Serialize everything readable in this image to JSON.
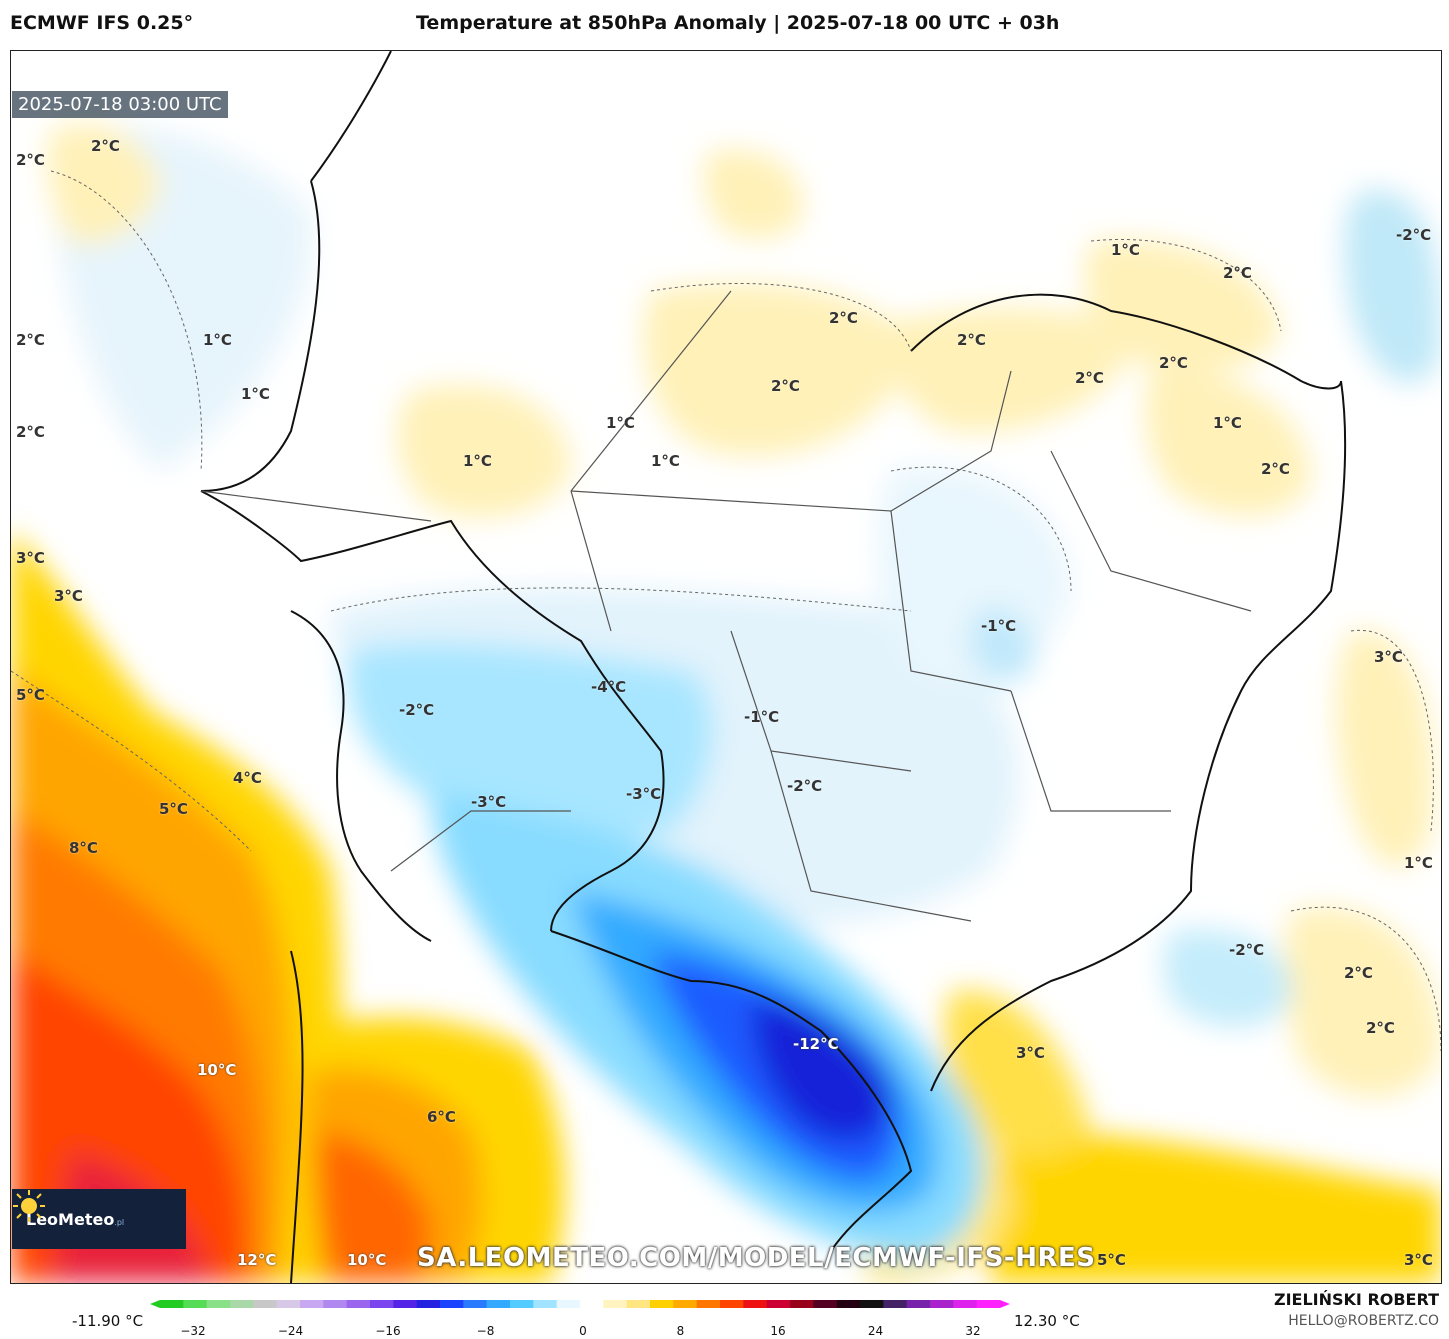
{
  "header": {
    "model": "ECMWF IFS 0.25°",
    "title": "Temperature at 850hPa Anomaly | 2025-07-18 00 UTC + 03h"
  },
  "map": {
    "timestamp": "2025-07-18 03:00 UTC",
    "watermark": "SA.LEOMETEO.COM/MODEL/ECMWF-IFS-HRES",
    "logo": {
      "name": "LeoMeteo",
      "suffix": ".pl"
    },
    "labels": [
      {
        "text": "2°C",
        "tone": "dark"
      },
      {
        "text": "2°C",
        "tone": "dark"
      },
      {
        "text": "2°C",
        "tone": "dark"
      },
      {
        "text": "2°C",
        "tone": "dark"
      },
      {
        "text": "1°C",
        "tone": "dark"
      },
      {
        "text": "1°C",
        "tone": "dark"
      },
      {
        "text": "1°C",
        "tone": "dark"
      },
      {
        "text": "1°C",
        "tone": "dark"
      },
      {
        "text": "1°C",
        "tone": "dark"
      },
      {
        "text": "2°C",
        "tone": "dark"
      },
      {
        "text": "2°C",
        "tone": "dark"
      },
      {
        "text": "2°C",
        "tone": "dark"
      },
      {
        "text": "2°C",
        "tone": "dark"
      },
      {
        "text": "2°C",
        "tone": "dark"
      },
      {
        "text": "1°C",
        "tone": "dark"
      },
      {
        "text": "2°C",
        "tone": "dark"
      },
      {
        "text": "1°C",
        "tone": "dark"
      },
      {
        "text": "2°C",
        "tone": "dark"
      },
      {
        "text": "-2°C",
        "tone": "dark"
      },
      {
        "text": "3°C",
        "tone": "dark"
      },
      {
        "text": "3°C",
        "tone": "dark"
      },
      {
        "text": "5°C",
        "tone": "dark"
      },
      {
        "text": "4°C",
        "tone": "dark"
      },
      {
        "text": "5°C",
        "tone": "dark"
      },
      {
        "text": "8°C",
        "tone": "dark"
      },
      {
        "text": "10°C",
        "tone": "light"
      },
      {
        "text": "6°C",
        "tone": "dark"
      },
      {
        "text": "12°C",
        "tone": "light"
      },
      {
        "text": "10°C",
        "tone": "light"
      },
      {
        "text": "-4°C",
        "tone": "dark"
      },
      {
        "text": "-1°C",
        "tone": "dark"
      },
      {
        "text": "-2°C",
        "tone": "dark"
      },
      {
        "text": "-3°C",
        "tone": "dark"
      },
      {
        "text": "-3°C",
        "tone": "dark"
      },
      {
        "text": "-2°C",
        "tone": "dark"
      },
      {
        "text": "-1°C",
        "tone": "dark"
      },
      {
        "text": "-12°C",
        "tone": "light"
      },
      {
        "text": "-2°C",
        "tone": "dark"
      },
      {
        "text": "2°C",
        "tone": "dark"
      },
      {
        "text": "2°C",
        "tone": "dark"
      },
      {
        "text": "3°C",
        "tone": "dark"
      },
      {
        "text": "3°C",
        "tone": "dark"
      },
      {
        "text": "1°C",
        "tone": "dark"
      },
      {
        "text": "5°C",
        "tone": "dark"
      },
      {
        "text": "3°C",
        "tone": "dark"
      }
    ]
  },
  "colorbar": {
    "min_label": "-11.90 °C",
    "max_label": "12.30 °C",
    "ticks": [
      "−32",
      "−24",
      "−16",
      "−8",
      "0",
      "8",
      "16",
      "24",
      "32"
    ],
    "colors": [
      "#22cc22",
      "#55dd55",
      "#88e088",
      "#a8d8a8",
      "#c8c8c8",
      "#d8c8e8",
      "#c8a8f0",
      "#b088f0",
      "#9a66ee",
      "#7a44ee",
      "#5522e8",
      "#2222e0",
      "#1a44ff",
      "#2a7aff",
      "#33aaff",
      "#55ccff",
      "#a0e4ff",
      "#e8f8ff",
      "#ffffff",
      "#fff4c0",
      "#ffe680",
      "#ffd000",
      "#ffaa00",
      "#ff7700",
      "#ff4400",
      "#ee1111",
      "#cc0033",
      "#99001a",
      "#550022",
      "#220011",
      "#111111",
      "#442266",
      "#7722aa",
      "#aa22cc",
      "#dd22ee",
      "#ff22ff"
    ]
  },
  "footer": {
    "author": "ZIELIŃSKI ROBERT",
    "email": "HELLO@ROBERTZ.CO"
  }
}
